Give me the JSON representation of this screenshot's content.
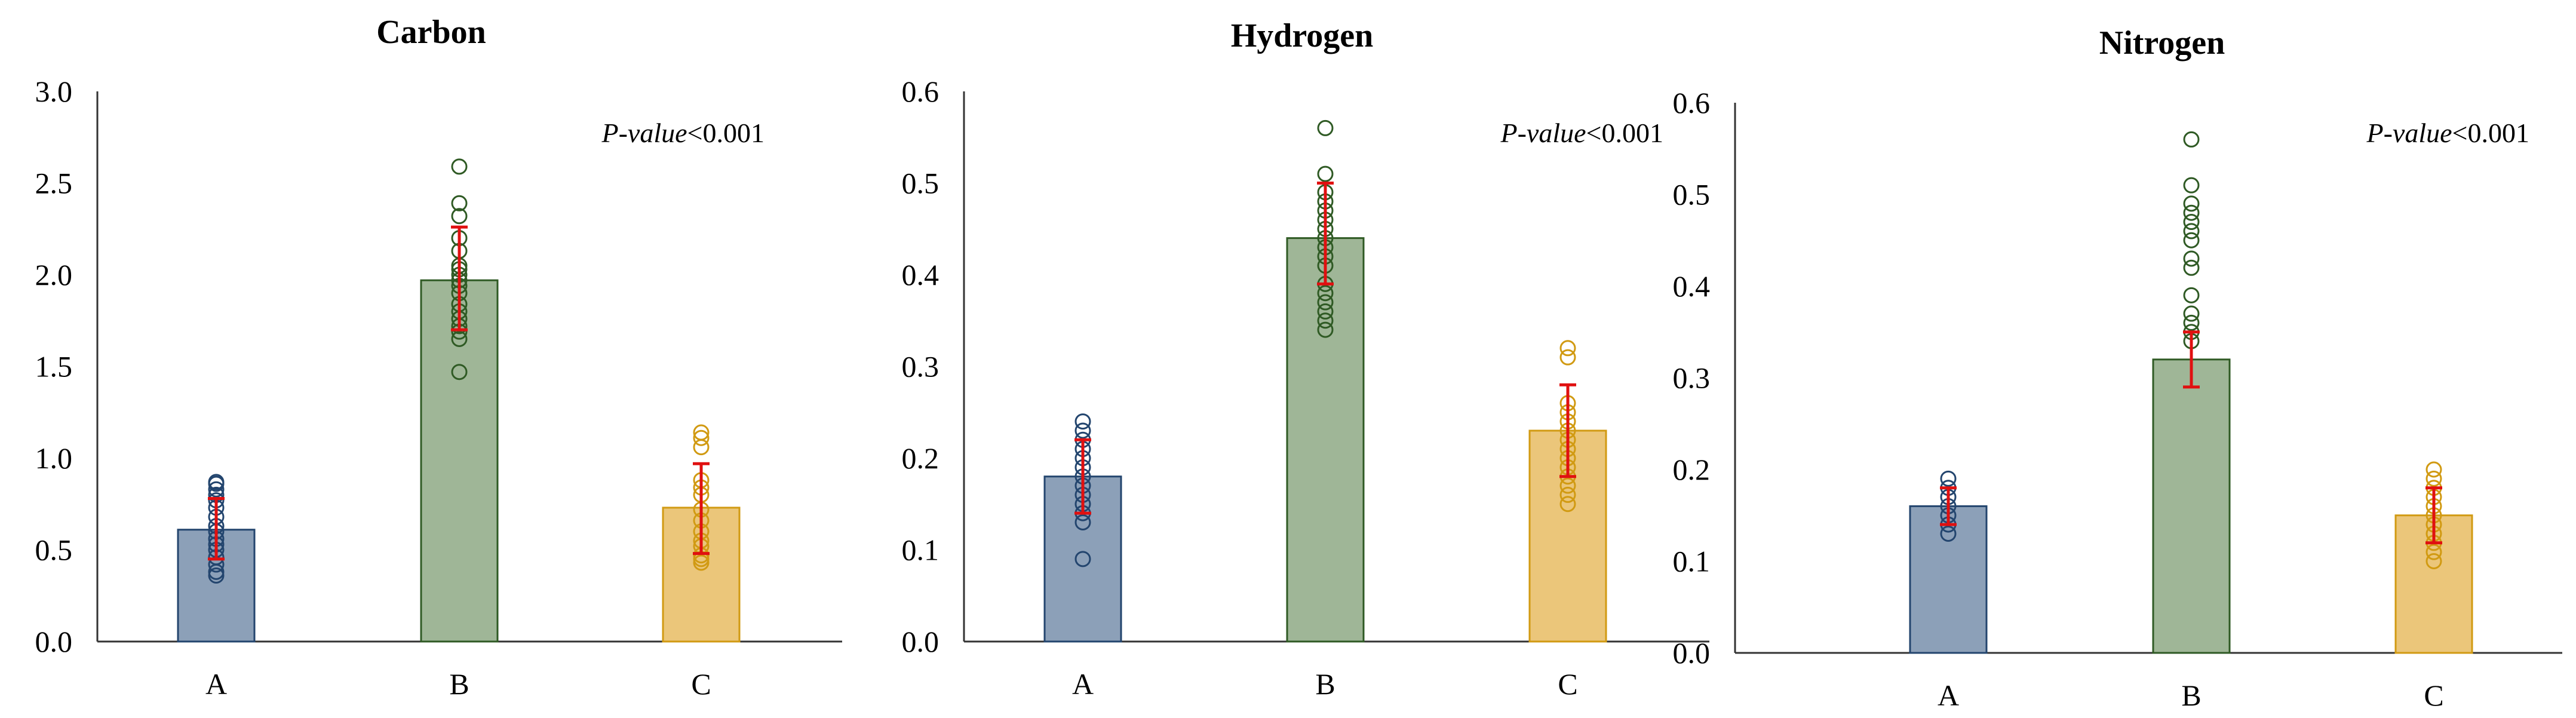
{
  "colors": {
    "A_fill": "#8ca0b8",
    "A_stroke": "#23456e",
    "B_fill": "#9fb697",
    "B_stroke": "#2f5a24",
    "C_fill": "#ebc67a",
    "C_stroke": "#d19a12",
    "error_bar": "#e01010",
    "axis": "#333333"
  },
  "chart_data": [
    {
      "type": "bar",
      "title": "Carbon",
      "categories": [
        "A",
        "B",
        "C"
      ],
      "values": [
        0.61,
        1.97,
        0.73
      ],
      "error": [
        [
          0.45,
          0.78
        ],
        [
          1.7,
          2.26
        ],
        [
          0.48,
          0.97
        ]
      ],
      "ylim": [
        0,
        3.0
      ],
      "yticks": [
        "0.0",
        "0.5",
        "1.0",
        "1.5",
        "2.0",
        "2.5",
        "3.0"
      ],
      "annotation": {
        "italic": "P-value",
        "text": "<0.001"
      },
      "points": [
        [
          0.36,
          0.38,
          0.42,
          0.46,
          0.5,
          0.53,
          0.56,
          0.6,
          0.63,
          0.68,
          0.73,
          0.77,
          0.8,
          0.83,
          0.86,
          0.87
        ],
        [
          1.47,
          1.65,
          1.69,
          1.72,
          1.76,
          1.8,
          1.84,
          1.9,
          1.94,
          1.97,
          2.0,
          2.03,
          2.05,
          2.13,
          2.2,
          2.32,
          2.39,
          2.59
        ],
        [
          0.43,
          0.45,
          0.47,
          0.52,
          0.55,
          0.6,
          0.66,
          0.72,
          0.8,
          0.84,
          0.88,
          1.06,
          1.11,
          1.14
        ]
      ]
    },
    {
      "type": "bar",
      "title": "Hydrogen",
      "categories": [
        "A",
        "B",
        "C"
      ],
      "values": [
        0.18,
        0.44,
        0.23
      ],
      "error": [
        [
          0.14,
          0.22
        ],
        [
          0.39,
          0.5
        ],
        [
          0.18,
          0.28
        ]
      ],
      "ylim": [
        0,
        0.6
      ],
      "yticks": [
        "0.0",
        "0.1",
        "0.2",
        "0.3",
        "0.4",
        "0.5",
        "0.6"
      ],
      "annotation": {
        "italic": "P-value",
        "text": "<0.001"
      },
      "points": [
        [
          0.09,
          0.13,
          0.14,
          0.15,
          0.16,
          0.17,
          0.18,
          0.19,
          0.2,
          0.21,
          0.22,
          0.23,
          0.24
        ],
        [
          0.34,
          0.35,
          0.36,
          0.37,
          0.38,
          0.39,
          0.41,
          0.42,
          0.43,
          0.44,
          0.45,
          0.46,
          0.47,
          0.48,
          0.49,
          0.51,
          0.56
        ],
        [
          0.15,
          0.16,
          0.17,
          0.18,
          0.19,
          0.2,
          0.21,
          0.22,
          0.23,
          0.24,
          0.25,
          0.26,
          0.31,
          0.32
        ]
      ]
    },
    {
      "type": "bar",
      "title": "Nitrogen",
      "categories": [
        "A",
        "B",
        "C"
      ],
      "values": [
        0.16,
        0.32,
        0.15
      ],
      "error": [
        [
          0.14,
          0.18
        ],
        [
          0.29,
          0.35
        ],
        [
          0.12,
          0.18
        ]
      ],
      "ylim": [
        0,
        0.6
      ],
      "yticks": [
        "0.0",
        "0.1",
        "0.2",
        "0.3",
        "0.4",
        "0.5",
        "0.6"
      ],
      "annotation": {
        "italic": "P-value",
        "text": "<0.001"
      },
      "points": [
        [
          0.13,
          0.14,
          0.15,
          0.16,
          0.17,
          0.18,
          0.19
        ],
        [
          0.34,
          0.35,
          0.36,
          0.37,
          0.39,
          0.42,
          0.43,
          0.45,
          0.46,
          0.47,
          0.48,
          0.49,
          0.51,
          0.56
        ],
        [
          0.1,
          0.11,
          0.12,
          0.13,
          0.14,
          0.15,
          0.16,
          0.17,
          0.18,
          0.19,
          0.2
        ]
      ]
    }
  ]
}
